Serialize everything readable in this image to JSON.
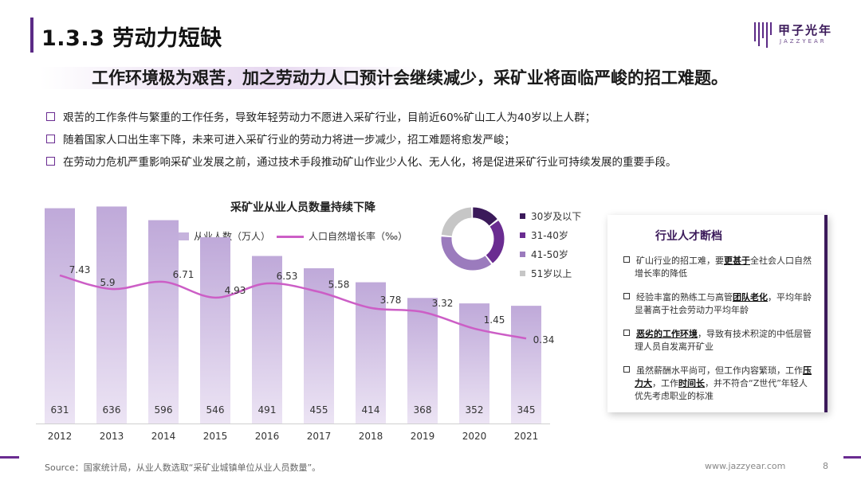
{
  "header": {
    "title": "1.3.3 劳动力短缺",
    "logo_name": "甲子光年",
    "logo_sub": "JAZZYEAR"
  },
  "headline": "工作环境极为艰苦，加之劳动力人口预计会继续减少，采矿业将面临严峻的招工难题。",
  "bullets": [
    "艰苦的工作条件与繁重的工作任务，导致年轻劳动力不愿进入采矿行业，目前近60%矿山工人为40岁以上人群；",
    "随着国家人口出生率下降，未来可进入采矿行业的劳动力将进一步减少，招工难题将愈发严峻；",
    "在劳动力危机严重影响采矿业发展之前，通过技术手段推动矿山作业少人化、无人化，将是促进采矿行业可持续发展的重要手段。"
  ],
  "chart_data": [
    {
      "type": "bar",
      "title": "采矿业从业人员数量持续下降",
      "categories": [
        "2012",
        "2013",
        "2014",
        "2015",
        "2016",
        "2017",
        "2018",
        "2019",
        "2020",
        "2021"
      ],
      "series": [
        {
          "name": "从业人数（万人）",
          "type": "bar",
          "values": [
            631,
            636,
            596,
            546,
            491,
            455,
            414,
            368,
            352,
            345
          ]
        },
        {
          "name": "人口自然增长率（‰）",
          "type": "line",
          "values": [
            7.43,
            5.9,
            6.71,
            4.93,
            6.53,
            5.58,
            3.78,
            3.32,
            1.45,
            0.34
          ]
        }
      ],
      "colors": {
        "bar": "#c6b3dd",
        "line": "#cc5ec6"
      }
    },
    {
      "type": "pie",
      "style": "donut",
      "categories": [
        "30岁及以下",
        "31-40岁",
        "41-50岁",
        "51岁以上"
      ],
      "values": [
        15,
        25,
        37,
        23
      ],
      "colors": [
        "#3b1a5a",
        "#6a2c91",
        "#9b7bbd",
        "#c6c6c6"
      ]
    }
  ],
  "panel": {
    "title": "行业人才断档",
    "items": [
      {
        "pre": "矿山行业的招工难，要",
        "bold": "更甚于",
        "post": "全社会人口自然增长率的降低"
      },
      {
        "pre": "经验丰富的熟练工与高管",
        "bold": "团队老化",
        "post": "，平均年龄显著高于社会劳动力平均年龄"
      },
      {
        "pre": "",
        "bold": "恶劣的工作环境",
        "post": "，导致有技术积淀的中低层管理人员自发离开矿业"
      },
      {
        "pre": "虽然薪酬水平尚可，但工作内容繁琐，工作",
        "bold": "压力大",
        "mid": "，工作",
        "bold2": "时间长",
        "post": "，并不符合“Z世代”年轻人优先考虑职业的标准"
      }
    ]
  },
  "footer": {
    "source": "Source：国家统计局，从业人数选取“采矿业城镇单位从业人员数量”。",
    "url": "www.jazzyear.com",
    "page": "8"
  },
  "colors": {
    "accent": "#6a2c91",
    "dark": "#3b1a5a"
  }
}
